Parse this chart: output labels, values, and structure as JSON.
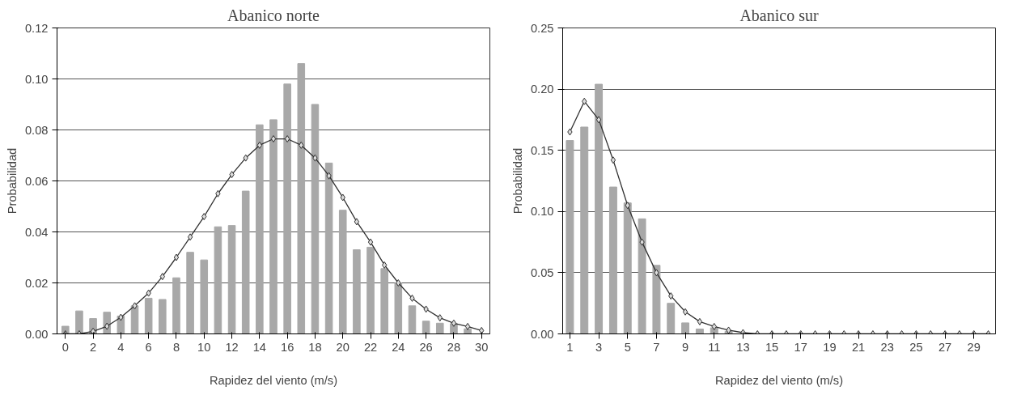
{
  "chart_data": [
    {
      "type": "bar",
      "title": "Abanico norte",
      "xlabel": "Rapidez del viento (m/s)",
      "ylabel": "Probabilidad",
      "x": [
        0,
        1,
        2,
        3,
        4,
        5,
        6,
        7,
        8,
        9,
        10,
        11,
        12,
        13,
        14,
        15,
        16,
        17,
        18,
        19,
        20,
        21,
        22,
        23,
        24,
        25,
        26,
        27,
        28,
        29,
        30
      ],
      "series": [
        {
          "type": "bar",
          "color": "#a8a8a8",
          "values": [
            0.003,
            0.009,
            0.006,
            0.0085,
            0.007,
            0.011,
            0.014,
            0.0135,
            0.022,
            0.032,
            0.029,
            0.042,
            0.0425,
            0.056,
            0.082,
            0.084,
            0.098,
            0.106,
            0.09,
            0.067,
            0.0485,
            0.033,
            0.034,
            0.0256,
            0.02,
            0.011,
            0.005,
            0.0042,
            0.004,
            0.002,
            null
          ]
        },
        {
          "type": "line",
          "color": "#303030",
          "marker": "diamond",
          "values": [
            0.0,
            0.0,
            0.001,
            0.003,
            0.0065,
            0.011,
            0.016,
            0.0225,
            0.03,
            0.038,
            0.046,
            0.055,
            0.0625,
            0.069,
            0.074,
            0.0765,
            0.0765,
            0.074,
            0.069,
            0.062,
            0.0535,
            0.044,
            0.036,
            0.027,
            0.02,
            0.014,
            0.0097,
            0.0063,
            0.0042,
            0.0029,
            0.0013
          ]
        }
      ],
      "xlim": [
        -0.6,
        30.6
      ],
      "xticks": [
        0,
        2,
        4,
        6,
        8,
        10,
        12,
        14,
        16,
        18,
        20,
        22,
        24,
        26,
        28,
        30
      ],
      "ylim": [
        0,
        0.12
      ],
      "yticks": [
        {
          "value": 0,
          "label": "0.00"
        },
        {
          "value": 0.02,
          "label": "0.02"
        },
        {
          "value": 0.04,
          "label": "0.04"
        },
        {
          "value": 0.06,
          "label": "0.06"
        },
        {
          "value": 0.08,
          "label": "0.08"
        },
        {
          "value": 0.1,
          "label": "0.10"
        },
        {
          "value": 0.12,
          "label": "0.12"
        }
      ],
      "grid": "y"
    },
    {
      "type": "bar",
      "title": "Abanico sur",
      "xlabel": "Rapidez del viento (m/s)",
      "ylabel": "Probabilidad",
      "x": [
        1,
        2,
        3,
        4,
        5,
        6,
        7,
        8,
        9,
        10,
        11,
        12,
        13,
        14,
        15,
        16,
        17,
        18,
        19,
        20,
        21,
        22,
        23,
        24,
        25,
        26,
        27,
        28,
        29,
        30
      ],
      "series": [
        {
          "type": "bar",
          "color": "#a8a8a8",
          "values": [
            0.158,
            0.169,
            0.204,
            0.12,
            0.107,
            0.094,
            0.056,
            0.025,
            0.009,
            0.004,
            0.005,
            0.002,
            0,
            0,
            0,
            0,
            0,
            0,
            0,
            0,
            0,
            0,
            0,
            0,
            0,
            0,
            0,
            0,
            0,
            0
          ]
        },
        {
          "type": "line",
          "color": "#303030",
          "marker": "diamond",
          "values": [
            0.165,
            0.19,
            0.175,
            0.142,
            0.105,
            0.075,
            0.05,
            0.031,
            0.018,
            0.01,
            0.006,
            0.003,
            0.001,
            0,
            0,
            0,
            0,
            0,
            0,
            0,
            0,
            0,
            0,
            0,
            0,
            0,
            0,
            0,
            0,
            0
          ]
        }
      ],
      "xlim": [
        0.5,
        30.5
      ],
      "xticks": [
        1,
        3,
        5,
        7,
        9,
        11,
        13,
        15,
        17,
        19,
        21,
        23,
        25,
        27,
        29
      ],
      "ylim": [
        0,
        0.25
      ],
      "yticks": [
        {
          "value": 0,
          "label": "0.00"
        },
        {
          "value": 0.05,
          "label": "0.05"
        },
        {
          "value": 0.1,
          "label": "0.10"
        },
        {
          "value": 0.15,
          "label": "0.15"
        },
        {
          "value": 0.2,
          "label": "0.20"
        },
        {
          "value": 0.25,
          "label": "0.25"
        }
      ],
      "grid": "y"
    }
  ]
}
